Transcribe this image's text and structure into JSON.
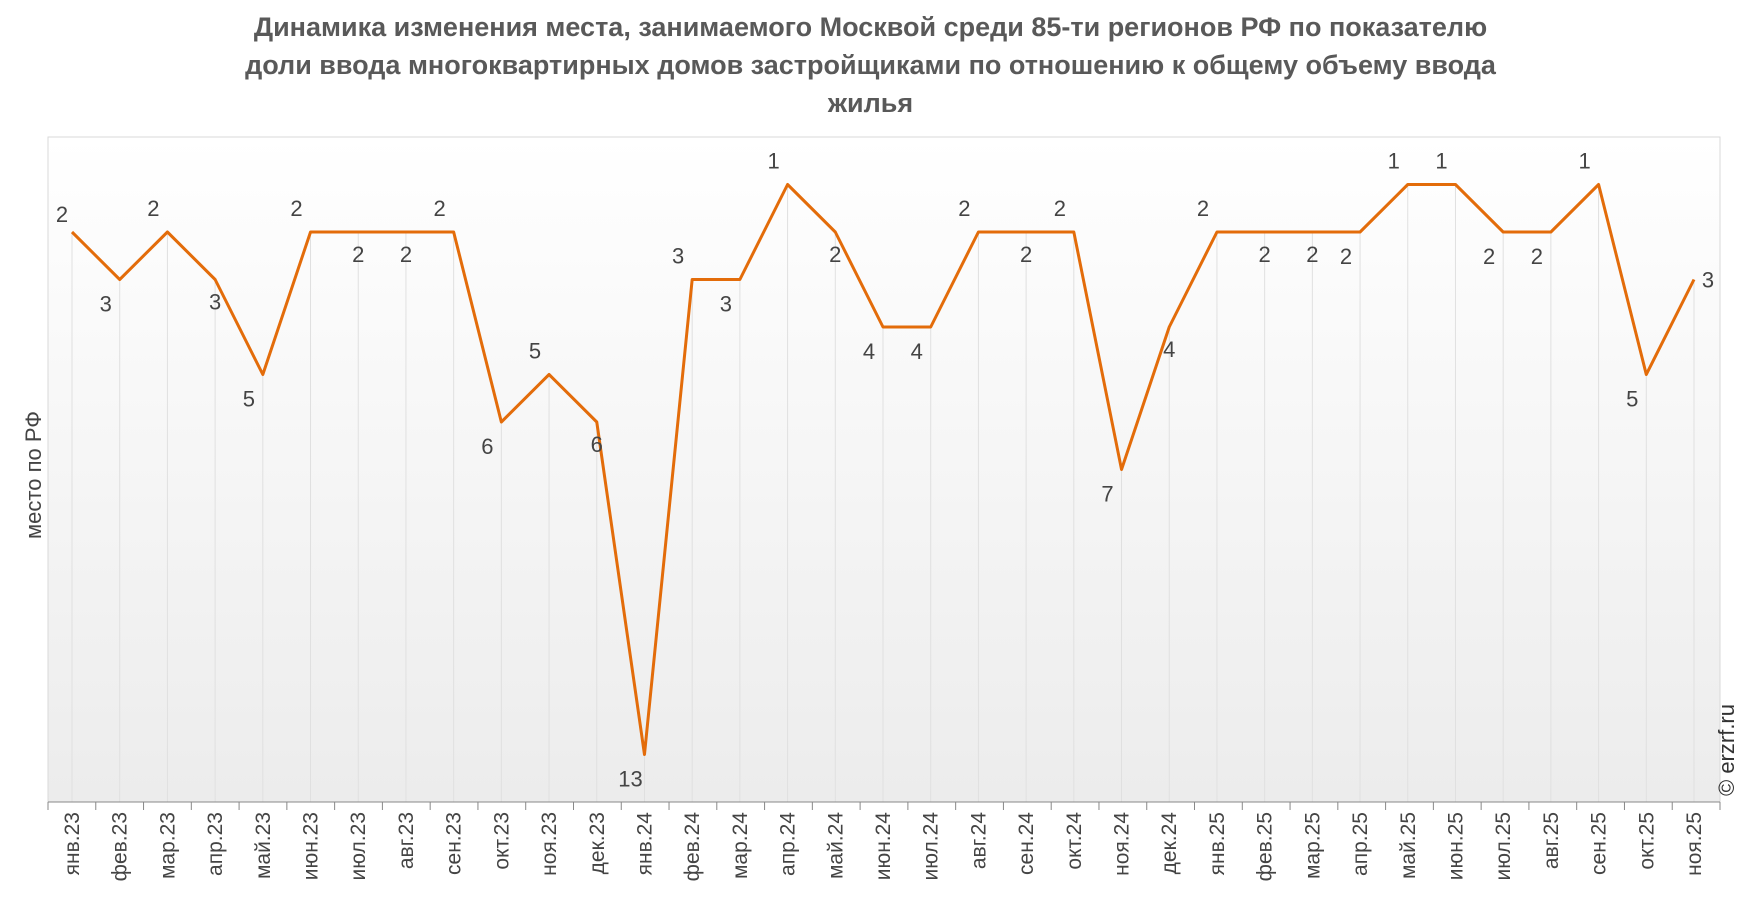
{
  "chart_data": {
    "type": "line",
    "title_lines": [
      "Динамика изменения места, занимаемого Москвой среди 85-ти регионов РФ по показателю",
      "доли ввода многоквартирных домов застройщиками по отношению к общему объему ввода",
      "жилья"
    ],
    "ylabel": "место по РФ",
    "y_reversed": true,
    "ylim": [
      0,
      14
    ],
    "grid": "vertical",
    "legend": "none",
    "categories": [
      "янв.23",
      "фев.23",
      "мар.23",
      "апр.23",
      "май.23",
      "июн.23",
      "июл.23",
      "авг.23",
      "сен.23",
      "окт.23",
      "ноя.23",
      "дек.23",
      "янв.24",
      "фев.24",
      "мар.24",
      "апр.24",
      "май.24",
      "июн.24",
      "июл.24",
      "авг.24",
      "сен.24",
      "окт.24",
      "ноя.24",
      "дек.24",
      "янв.25",
      "фев.25",
      "мар.25",
      "апр.25",
      "май.25",
      "июн.25",
      "июл.25",
      "авг.25",
      "сен.25",
      "окт.25",
      "ноя.25"
    ],
    "values": [
      2,
      3,
      2,
      3,
      5,
      2,
      2,
      2,
      2,
      6,
      5,
      6,
      13,
      3,
      3,
      1,
      2,
      4,
      4,
      2,
      2,
      2,
      7,
      4,
      2,
      2,
      2,
      2,
      1,
      1,
      2,
      2,
      1,
      5,
      3
    ],
    "line_color": "#E36C0A"
  },
  "watermark": "© erzrf.ru"
}
